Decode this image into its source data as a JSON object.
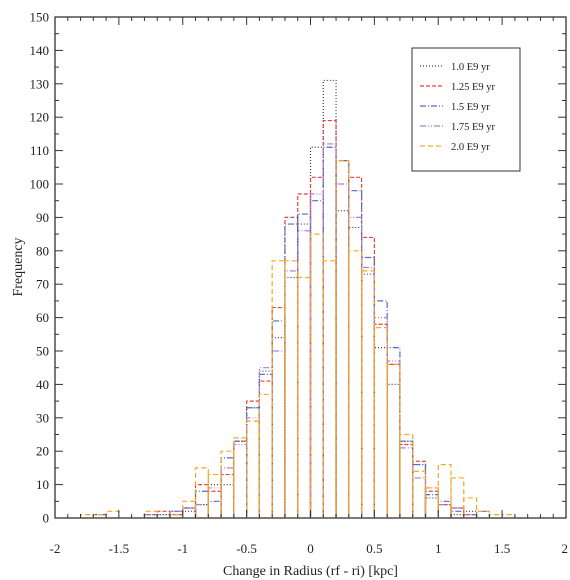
{
  "chart_data": {
    "type": "histogram",
    "title": "",
    "xlabel": "Change in Radius (rf - ri) [kpc]",
    "ylabel": "Frequency",
    "xlim": [
      -2,
      2
    ],
    "ylim": [
      0,
      150
    ],
    "xticks": [
      "-2",
      "-1.5",
      "-1",
      "-0.5",
      "0",
      "0.5",
      "1",
      "1.5",
      "2"
    ],
    "yticks": [
      "0",
      "10",
      "20",
      "30",
      "40",
      "50",
      "60",
      "70",
      "80",
      "90",
      "100",
      "110",
      "120",
      "130",
      "140",
      "150"
    ],
    "grid": false,
    "legend_position": "top-right",
    "bin_edges": [
      -1.8,
      -1.7,
      -1.6,
      -1.5,
      -1.4,
      -1.3,
      -1.2,
      -1.1,
      -1.0,
      -0.9,
      -0.8,
      -0.7,
      -0.6,
      -0.5,
      -0.4,
      -0.3,
      -0.2,
      -0.1,
      0.0,
      0.1,
      0.2,
      0.3,
      0.4,
      0.5,
      0.6,
      0.7,
      0.8,
      0.9,
      1.0,
      1.1,
      1.2,
      1.3,
      1.4,
      1.5,
      1.6
    ],
    "series": [
      {
        "name": "1.0 E9 yr",
        "color": "#3a3a3a",
        "dash": "1,2",
        "values": [
          0,
          1,
          0,
          0,
          0,
          0,
          1,
          2,
          2,
          4,
          10,
          10,
          23,
          33,
          44,
          54,
          72,
          88,
          111,
          131,
          92,
          87,
          73,
          51,
          40,
          23,
          16,
          6,
          4,
          1,
          2,
          0,
          0,
          0,
          0
        ]
      },
      {
        "name": "1.25 E9 yr",
        "color": "#e0463c",
        "dash": "4,2",
        "values": [
          0,
          0,
          0,
          0,
          0,
          1,
          2,
          1,
          3,
          10,
          8,
          13,
          23,
          35,
          41,
          63,
          90,
          97,
          102,
          119,
          107,
          102,
          84,
          58,
          46,
          22,
          17,
          8,
          4,
          3,
          1,
          0,
          0,
          0,
          0
        ]
      },
      {
        "name": "1.5 E9 yr",
        "color": "#4a6fc8",
        "dash": "6,2,1,2",
        "values": [
          0,
          1,
          0,
          0,
          0,
          1,
          0,
          2,
          3,
          8,
          5,
          18,
          23,
          33,
          43,
          59,
          88,
          91,
          95,
          111,
          107,
          98,
          78,
          65,
          51,
          23,
          16,
          7,
          5,
          2,
          1,
          2,
          0,
          0,
          0
        ]
      },
      {
        "name": "1.75 E9 yr",
        "color": "#b27fd0",
        "dash": "6,2,1,2,1,2",
        "values": [
          0,
          0,
          0,
          0,
          0,
          1,
          1,
          2,
          3,
          4,
          9,
          15,
          22,
          30,
          45,
          50,
          74,
          86,
          97,
          112,
          100,
          90,
          75,
          60,
          47,
          21,
          12,
          9,
          4,
          3,
          1,
          0,
          0,
          0,
          0
        ]
      },
      {
        "name": "2.0 E9 yr",
        "color": "#f5a623",
        "dash": "5,3",
        "values": [
          1,
          1,
          2,
          0,
          0,
          2,
          0,
          1,
          5,
          15,
          13,
          20,
          24,
          29,
          37,
          77,
          77,
          72,
          85,
          77,
          107,
          80,
          74,
          57,
          46,
          25,
          14,
          9,
          16,
          12,
          6,
          2,
          1,
          1,
          0
        ]
      }
    ]
  }
}
